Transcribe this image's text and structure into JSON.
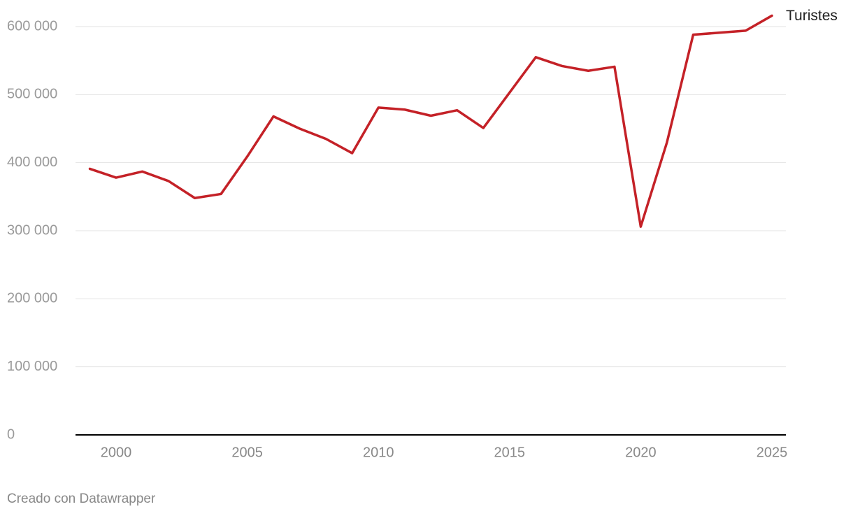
{
  "chart_data": {
    "type": "line",
    "x": [
      1999,
      2000,
      2001,
      2002,
      2003,
      2004,
      2005,
      2006,
      2007,
      2008,
      2009,
      2010,
      2011,
      2012,
      2013,
      2014,
      2015,
      2016,
      2017,
      2018,
      2019,
      2020,
      2021,
      2022,
      2023,
      2024,
      2025
    ],
    "series": [
      {
        "name": "Turistes",
        "color": "#c42127",
        "values": [
          391000,
          378000,
          387000,
          373000,
          348000,
          354000,
          409000,
          468000,
          450000,
          435000,
          414000,
          481000,
          478000,
          469000,
          477000,
          451000,
          503000,
          555000,
          542000,
          535000,
          541000,
          306000,
          430000,
          588000,
          591000,
          594000,
          616000
        ]
      }
    ],
    "xlim": [
      1999,
      2025
    ],
    "xticks": [
      2000,
      2005,
      2010,
      2015,
      2020,
      2025
    ],
    "ylim": [
      0,
      600000
    ],
    "yticks": [
      0,
      {
        "value": 100000,
        "label": "100 000"
      },
      {
        "value": 200000,
        "label": "200 000"
      },
      {
        "value": 300000,
        "label": "300 000"
      },
      {
        "value": 400000,
        "label": "400 000"
      },
      {
        "value": 500000,
        "label": "500 000"
      },
      {
        "value": 600000,
        "label": "600 000"
      }
    ],
    "grid": true,
    "footer": "Creado con Datawrapper"
  }
}
